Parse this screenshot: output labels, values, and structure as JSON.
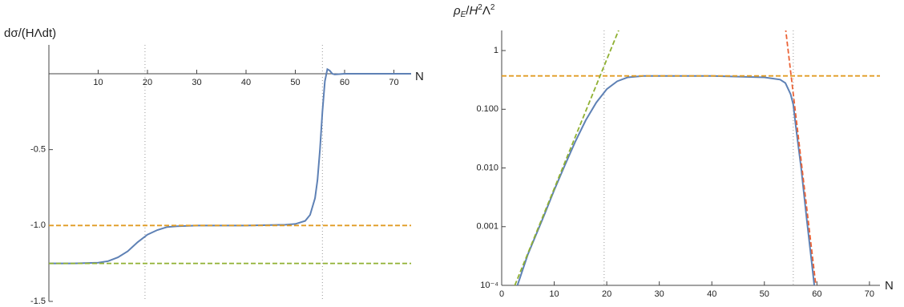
{
  "chart_data": [
    {
      "type": "line",
      "ylabel": "dσ/(HΛdt)",
      "xlabel": "N",
      "xlim": [
        0,
        73.5
      ],
      "ylim": [
        -1.5,
        0.19
      ],
      "xticks": [
        10,
        20,
        30,
        40,
        50,
        60,
        70
      ],
      "yticks": [
        -1.5,
        {
          "value": -1,
          "label": "-1.0"
        },
        -0.5
      ],
      "vlines": [
        19.5,
        55.5
      ],
      "log": false,
      "axis_at_zero": true,
      "series": [
        {
          "color": "#5e81b5",
          "dash": false,
          "x": [
            0,
            5,
            10,
            12,
            14,
            16,
            18,
            20,
            22,
            24,
            26,
            30,
            40,
            48,
            50,
            52,
            53,
            54,
            54.5,
            55,
            55.5,
            56,
            56.5,
            57,
            57.5,
            58,
            60,
            65,
            70,
            73.5
          ],
          "values": [
            -1.25,
            -1.25,
            -1.245,
            -1.235,
            -1.21,
            -1.17,
            -1.11,
            -1.06,
            -1.03,
            -1.01,
            -1.005,
            -1,
            -1,
            -0.995,
            -0.99,
            -0.97,
            -0.93,
            -0.82,
            -0.7,
            -0.5,
            -0.25,
            -0.05,
            0.03,
            0.02,
            0,
            -0.005,
            0,
            0,
            0,
            0
          ]
        },
        {
          "color": "#e19c24",
          "dash": true,
          "x": [
            0,
            73.5
          ],
          "values": [
            -1,
            -1
          ]
        },
        {
          "color": "#8fb032",
          "dash": true,
          "x": [
            0,
            73.5
          ],
          "values": [
            -1.25,
            -1.25
          ]
        }
      ]
    },
    {
      "type": "line",
      "ylabel_parts": [
        "ρ",
        "E",
        "/",
        "H",
        "2",
        "Λ",
        "2"
      ],
      "xlabel": "N",
      "xlim": [
        0,
        72
      ],
      "ylim": [
        0.0001,
        2.2
      ],
      "log": true,
      "axis_at_zero": false,
      "xticks": [
        0,
        10,
        20,
        30,
        40,
        50,
        60,
        70
      ],
      "yticks": [
        {
          "value": 0.0001,
          "label": "10⁻⁴"
        },
        0.001,
        {
          "value": 0.01,
          "label": "0.010"
        },
        {
          "value": 0.1,
          "label": "0.100"
        },
        1
      ],
      "vlines": [
        19.5,
        55.5
      ],
      "series": [
        {
          "color": "#5e81b5",
          "dash": false,
          "x": [
            3,
            5,
            8,
            10,
            12,
            14,
            16,
            18,
            20,
            22,
            24,
            27,
            40,
            50,
            53,
            54,
            55,
            55.5,
            56,
            57,
            58,
            59,
            59.5
          ],
          "values": [
            0.0001,
            0.00034,
            0.0015,
            0.0042,
            0.011,
            0.028,
            0.065,
            0.13,
            0.22,
            0.3,
            0.35,
            0.37,
            0.37,
            0.35,
            0.32,
            0.28,
            0.18,
            0.12,
            0.05,
            0.01,
            0.0015,
            0.00025,
            0.0001
          ]
        },
        {
          "color": "#e19c24",
          "dash": true,
          "x": [
            0,
            72
          ],
          "values": [
            0.37,
            0.37
          ]
        },
        {
          "color": "#8fb032",
          "dash": true,
          "x": [
            2.5,
            22.5
          ],
          "values": [
            0.0001,
            2.5
          ]
        },
        {
          "color": "#eb6235",
          "dash": true,
          "x": [
            54,
            59.8
          ],
          "values": [
            2.5,
            0.0001
          ]
        }
      ]
    }
  ]
}
